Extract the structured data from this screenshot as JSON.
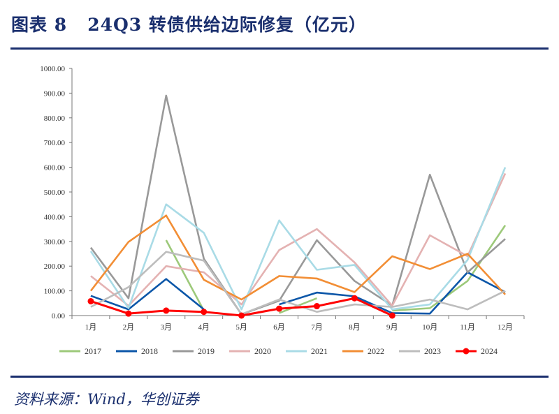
{
  "header": {
    "title": "图表 8   24Q3 转债供给边际修复（亿元）"
  },
  "footer": {
    "source": "资料来源：Wind，华创证券"
  },
  "chart_data": {
    "type": "line",
    "categories": [
      "1月",
      "2月",
      "3月",
      "4月",
      "5月",
      "6月",
      "7月",
      "8月",
      "9月",
      "10月",
      "11月",
      "12月"
    ],
    "ylim": [
      0,
      1000
    ],
    "yticks": [
      "0.00",
      "100.00",
      "200.00",
      "300.00",
      "400.00",
      "500.00",
      "600.00",
      "700.00",
      "800.00",
      "900.00",
      "1000.00"
    ],
    "grid": false,
    "legend": "bottom",
    "series": [
      {
        "name": "2017",
        "color": "#9dc97a",
        "values": [
          null,
          null,
          305,
          20,
          null,
          10,
          70,
          null,
          20,
          30,
          140,
          365
        ]
      },
      {
        "name": "2018",
        "color": "#0b56a8",
        "values": [
          80,
          25,
          148,
          25,
          null,
          45,
          93,
          78,
          10,
          8,
          175,
          95
        ]
      },
      {
        "name": "2019",
        "color": "#999999",
        "values": [
          275,
          70,
          890,
          230,
          5,
          60,
          305,
          140,
          40,
          570,
          175,
          310
        ]
      },
      {
        "name": "2020",
        "color": "#e4b2b2",
        "values": [
          160,
          40,
          200,
          175,
          45,
          265,
          350,
          215,
          40,
          325,
          240,
          575
        ]
      },
      {
        "name": "2021",
        "color": "#a9dbe6",
        "values": [
          260,
          30,
          450,
          335,
          25,
          385,
          185,
          205,
          25,
          45,
          225,
          600
        ]
      },
      {
        "name": "2022",
        "color": "#f28e35",
        "values": [
          100,
          298,
          405,
          145,
          65,
          160,
          150,
          95,
          240,
          188,
          250,
          85
        ]
      },
      {
        "name": "2023",
        "color": "#bdbdbd",
        "values": [
          35,
          115,
          258,
          222,
          5,
          65,
          15,
          45,
          35,
          65,
          25,
          100
        ]
      },
      {
        "name": "2024",
        "color": "#ff0000",
        "markers": true,
        "values": [
          58,
          8,
          20,
          15,
          0,
          28,
          38,
          70,
          0,
          null,
          null,
          null
        ]
      }
    ]
  }
}
